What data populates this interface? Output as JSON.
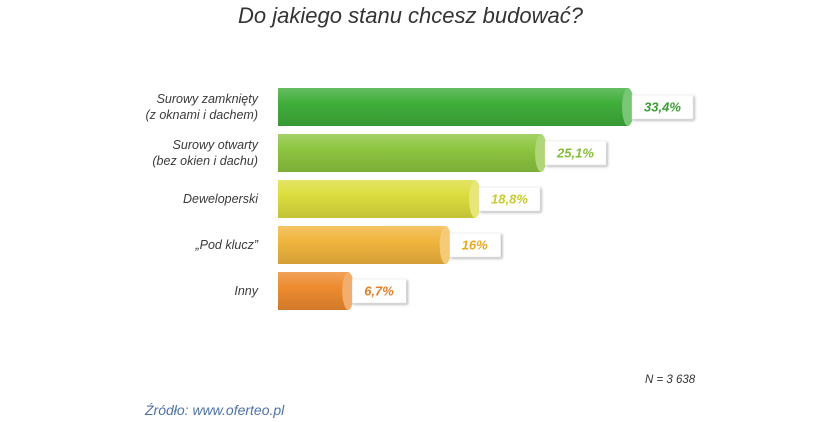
{
  "chart_data": {
    "type": "bar",
    "title": "Do jakiego stanu chcesz budować?",
    "categories": [
      "Surowy zamknięty\n(z oknami i dachem)",
      "Surowy otwarty\n(bez okien i dachu)",
      "Deweloperski",
      "„Pod klucz”",
      "Inny"
    ],
    "values": [
      33.4,
      25.1,
      18.8,
      16,
      6.7
    ],
    "data_labels": [
      "33,4%",
      "25,1%",
      "18,8%",
      "16%",
      "6,7%"
    ],
    "colors": [
      "#3fae3a",
      "#8dc540",
      "#dcdd3e",
      "#f1b53e",
      "#ee8b30"
    ],
    "label_colors": [
      "#3c9d35",
      "#86bd3a",
      "#c9cb2e",
      "#e9a823",
      "#e57f27"
    ],
    "grid": false
  },
  "note": "N = 3 638",
  "source": "Źródło: www.oferteo.pl"
}
